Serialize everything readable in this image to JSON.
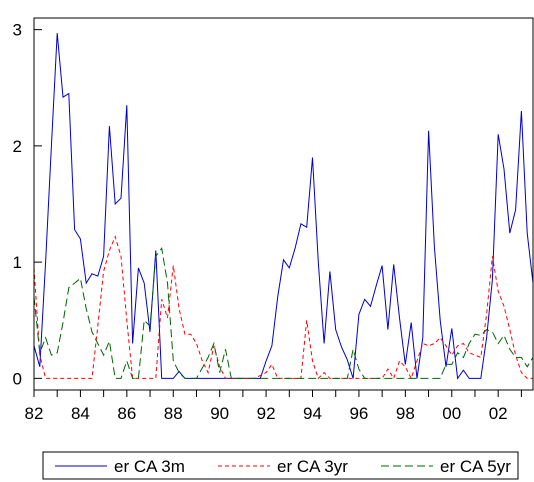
{
  "chart_data": {
    "type": "line",
    "title": "",
    "xlabel": "",
    "ylabel": "",
    "xlim": [
      1982.0,
      2003.5
    ],
    "ylim": [
      -0.1,
      3.1
    ],
    "x_ticks": [
      "82",
      "84",
      "86",
      "88",
      "90",
      "92",
      "94",
      "96",
      "98",
      "00",
      "02"
    ],
    "x_tick_values": [
      1982,
      1984,
      1986,
      1988,
      1990,
      1992,
      1994,
      1996,
      1998,
      2000,
      2002
    ],
    "y_ticks": [
      "0",
      "1",
      "2",
      "3"
    ],
    "y_tick_values": [
      0,
      1,
      2,
      3
    ],
    "grid": false,
    "legend_position": "bottom",
    "series": [
      {
        "name": "er CA 3m",
        "color": "#0000cc",
        "dash": "solid",
        "points": [
          [
            1982.0,
            0.28
          ],
          [
            1982.25,
            0.1
          ],
          [
            1982.5,
            1.0
          ],
          [
            1982.75,
            2.0
          ],
          [
            1983.0,
            2.97
          ],
          [
            1983.25,
            2.42
          ],
          [
            1983.5,
            2.45
          ],
          [
            1983.75,
            1.28
          ],
          [
            1984.0,
            1.2
          ],
          [
            1984.25,
            0.82
          ],
          [
            1984.5,
            0.9
          ],
          [
            1984.75,
            0.88
          ],
          [
            1985.0,
            1.05
          ],
          [
            1985.25,
            2.17
          ],
          [
            1985.5,
            1.5
          ],
          [
            1985.75,
            1.55
          ],
          [
            1986.0,
            2.35
          ],
          [
            1986.25,
            0.3
          ],
          [
            1986.5,
            0.95
          ],
          [
            1986.75,
            0.82
          ],
          [
            1987.0,
            0.4
          ],
          [
            1987.25,
            1.1
          ],
          [
            1987.5,
            0.0
          ],
          [
            1987.75,
            0.0
          ],
          [
            1988.0,
            0.0
          ],
          [
            1988.25,
            0.06
          ],
          [
            1988.5,
            0.0
          ],
          [
            1988.75,
            0.0
          ],
          [
            1989.0,
            0.0
          ],
          [
            1990.0,
            0.0
          ],
          [
            1991.0,
            0.0
          ],
          [
            1991.75,
            0.0
          ],
          [
            1992.0,
            0.15
          ],
          [
            1992.25,
            0.28
          ],
          [
            1992.5,
            0.7
          ],
          [
            1992.75,
            1.02
          ],
          [
            1993.0,
            0.95
          ],
          [
            1993.25,
            1.12
          ],
          [
            1993.5,
            1.33
          ],
          [
            1993.75,
            1.3
          ],
          [
            1994.0,
            1.9
          ],
          [
            1994.25,
            1.0
          ],
          [
            1994.5,
            0.3
          ],
          [
            1994.75,
            0.92
          ],
          [
            1995.0,
            0.42
          ],
          [
            1995.25,
            0.27
          ],
          [
            1995.5,
            0.16
          ],
          [
            1995.75,
            0.0
          ],
          [
            1996.0,
            0.55
          ],
          [
            1996.25,
            0.68
          ],
          [
            1996.5,
            0.62
          ],
          [
            1996.75,
            0.8
          ],
          [
            1997.0,
            0.97
          ],
          [
            1997.25,
            0.42
          ],
          [
            1997.5,
            0.98
          ],
          [
            1997.75,
            0.52
          ],
          [
            1998.0,
            0.12
          ],
          [
            1998.25,
            0.48
          ],
          [
            1998.5,
            0.0
          ],
          [
            1998.75,
            0.35
          ],
          [
            1999.0,
            2.13
          ],
          [
            1999.25,
            1.13
          ],
          [
            1999.5,
            0.5
          ],
          [
            1999.75,
            0.1
          ],
          [
            2000.0,
            0.43
          ],
          [
            2000.25,
            0.0
          ],
          [
            2000.5,
            0.07
          ],
          [
            2000.75,
            0.0
          ],
          [
            2001.0,
            0.0
          ],
          [
            2001.25,
            0.0
          ],
          [
            2001.5,
            0.35
          ],
          [
            2001.75,
            0.85
          ],
          [
            2002.0,
            2.1
          ],
          [
            2002.25,
            1.8
          ],
          [
            2002.5,
            1.25
          ],
          [
            2002.75,
            1.45
          ],
          [
            2003.0,
            2.3
          ],
          [
            2003.25,
            1.25
          ],
          [
            2003.5,
            0.82
          ]
        ]
      },
      {
        "name": "er CA 3yr",
        "color": "#ff0000",
        "dash": "dashed",
        "points": [
          [
            1982.0,
            0.95
          ],
          [
            1982.25,
            0.2
          ],
          [
            1982.5,
            0.0
          ],
          [
            1983.0,
            0.0
          ],
          [
            1984.0,
            0.0
          ],
          [
            1984.5,
            0.0
          ],
          [
            1984.75,
            0.45
          ],
          [
            1985.0,
            0.92
          ],
          [
            1985.25,
            1.1
          ],
          [
            1985.5,
            1.22
          ],
          [
            1985.75,
            1.05
          ],
          [
            1986.0,
            0.5
          ],
          [
            1986.25,
            0.0
          ],
          [
            1986.75,
            0.0
          ],
          [
            1987.25,
            0.0
          ],
          [
            1987.5,
            0.68
          ],
          [
            1987.75,
            0.52
          ],
          [
            1988.0,
            0.97
          ],
          [
            1988.25,
            0.6
          ],
          [
            1988.5,
            0.38
          ],
          [
            1988.75,
            0.38
          ],
          [
            1989.0,
            0.3
          ],
          [
            1989.25,
            0.15
          ],
          [
            1989.5,
            0.05
          ],
          [
            1989.75,
            0.28
          ],
          [
            1990.0,
            0.1
          ],
          [
            1990.25,
            0.0
          ],
          [
            1991.5,
            0.0
          ],
          [
            1992.0,
            0.05
          ],
          [
            1992.25,
            0.12
          ],
          [
            1992.5,
            0.0
          ],
          [
            1993.5,
            0.0
          ],
          [
            1993.75,
            0.5
          ],
          [
            1994.0,
            0.15
          ],
          [
            1994.25,
            0.0
          ],
          [
            1994.5,
            0.05
          ],
          [
            1994.75,
            0.0
          ],
          [
            1996.25,
            0.0
          ],
          [
            1996.5,
            0.0
          ],
          [
            1997.0,
            0.0
          ],
          [
            1997.25,
            0.08
          ],
          [
            1997.5,
            0.0
          ],
          [
            1997.75,
            0.15
          ],
          [
            1998.0,
            0.1
          ],
          [
            1998.25,
            0.0
          ],
          [
            1998.75,
            0.3
          ],
          [
            1999.0,
            0.28
          ],
          [
            1999.25,
            0.3
          ],
          [
            1999.5,
            0.35
          ],
          [
            1999.75,
            0.28
          ],
          [
            2000.0,
            0.2
          ],
          [
            2000.25,
            0.28
          ],
          [
            2000.5,
            0.3
          ],
          [
            2000.75,
            0.22
          ],
          [
            2001.0,
            0.2
          ],
          [
            2001.25,
            0.18
          ],
          [
            2001.5,
            0.55
          ],
          [
            2001.75,
            1.05
          ],
          [
            2002.0,
            0.75
          ],
          [
            2002.25,
            0.62
          ],
          [
            2002.5,
            0.42
          ],
          [
            2002.75,
            0.2
          ],
          [
            2003.0,
            0.05
          ],
          [
            2003.25,
            0.0
          ],
          [
            2003.5,
            0.0
          ]
        ]
      },
      {
        "name": "er CA 5yr",
        "color": "#006600",
        "dash": "long-dashed",
        "points": [
          [
            1982.0,
            0.7
          ],
          [
            1982.25,
            0.22
          ],
          [
            1982.5,
            0.35
          ],
          [
            1982.75,
            0.2
          ],
          [
            1983.0,
            0.22
          ],
          [
            1983.25,
            0.48
          ],
          [
            1983.5,
            0.78
          ],
          [
            1983.75,
            0.82
          ],
          [
            1984.0,
            0.86
          ],
          [
            1984.25,
            0.6
          ],
          [
            1984.5,
            0.4
          ],
          [
            1984.75,
            0.3
          ],
          [
            1985.0,
            0.2
          ],
          [
            1985.25,
            0.32
          ],
          [
            1985.5,
            0.0
          ],
          [
            1985.75,
            0.0
          ],
          [
            1986.0,
            0.15
          ],
          [
            1986.25,
            0.0
          ],
          [
            1986.5,
            0.0
          ],
          [
            1986.75,
            0.5
          ],
          [
            1987.0,
            0.45
          ],
          [
            1987.25,
            1.05
          ],
          [
            1987.5,
            1.12
          ],
          [
            1987.75,
            0.82
          ],
          [
            1988.0,
            0.15
          ],
          [
            1988.25,
            0.05
          ],
          [
            1988.5,
            0.0
          ],
          [
            1989.0,
            0.0
          ],
          [
            1989.5,
            0.18
          ],
          [
            1989.75,
            0.3
          ],
          [
            1990.0,
            0.05
          ],
          [
            1990.25,
            0.25
          ],
          [
            1990.5,
            0.0
          ],
          [
            1995.5,
            0.0
          ],
          [
            1995.75,
            0.25
          ],
          [
            1996.0,
            0.08
          ],
          [
            1996.25,
            0.0
          ],
          [
            1998.5,
            0.0
          ],
          [
            1998.75,
            0.0
          ],
          [
            1999.0,
            0.0
          ],
          [
            1999.25,
            0.0
          ],
          [
            1999.5,
            0.0
          ],
          [
            1999.75,
            0.12
          ],
          [
            2000.0,
            0.12
          ],
          [
            2000.25,
            0.22
          ],
          [
            2000.5,
            0.18
          ],
          [
            2000.75,
            0.3
          ],
          [
            2001.0,
            0.38
          ],
          [
            2001.25,
            0.37
          ],
          [
            2001.5,
            0.42
          ],
          [
            2001.75,
            0.4
          ],
          [
            2002.0,
            0.3
          ],
          [
            2002.25,
            0.37
          ],
          [
            2002.5,
            0.25
          ],
          [
            2002.75,
            0.18
          ],
          [
            2003.0,
            0.18
          ],
          [
            2003.25,
            0.1
          ],
          [
            2003.5,
            0.18
          ]
        ]
      }
    ]
  }
}
